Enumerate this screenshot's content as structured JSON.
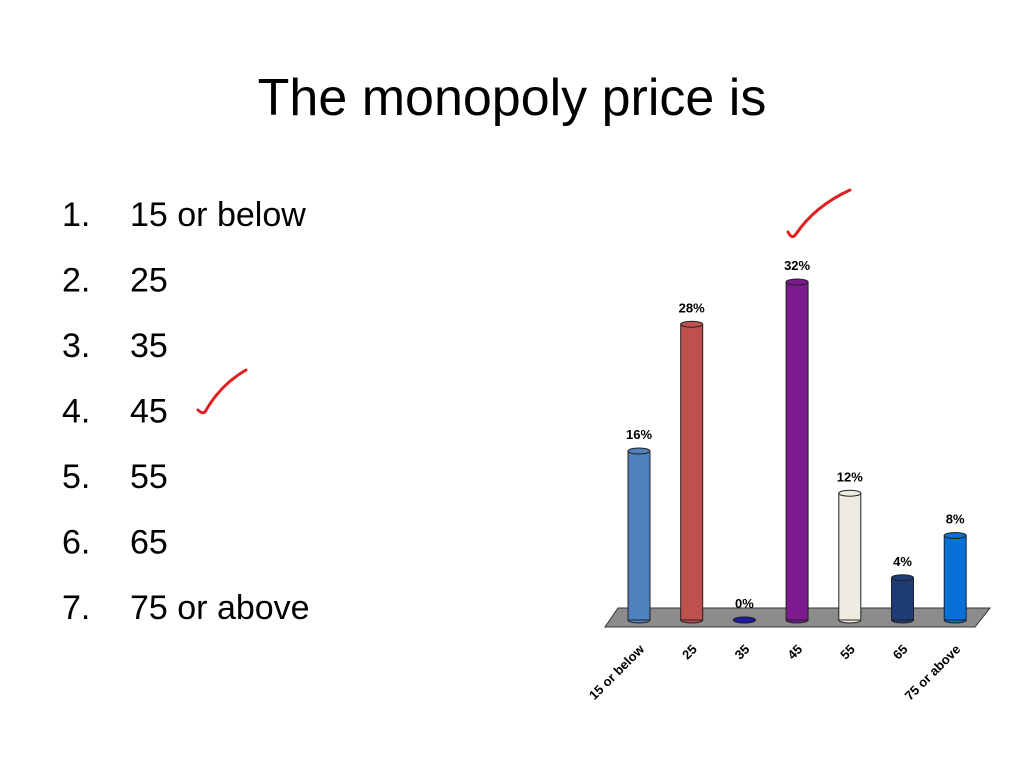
{
  "title": "The monopoly price is",
  "list": [
    {
      "marker": "1.",
      "text": "15 or below"
    },
    {
      "marker": "2.",
      "text": "25"
    },
    {
      "marker": "3.",
      "text": "35"
    },
    {
      "marker": "4.",
      "text": "45"
    },
    {
      "marker": "5.",
      "text": "55"
    },
    {
      "marker": "6.",
      "text": "65"
    },
    {
      "marker": "7.",
      "text": "75 or above"
    }
  ],
  "chart_data": {
    "type": "bar",
    "categories": [
      "15 or below",
      "25",
      "35",
      "45",
      "55",
      "65",
      "75 or above"
    ],
    "values": [
      16,
      28,
      0,
      32,
      12,
      4,
      8
    ],
    "value_labels": [
      "16%",
      "28%",
      "0%",
      "32%",
      "12%",
      "4%",
      "8%"
    ],
    "colors": [
      "#4f81bd",
      "#c0504d",
      "#1a1aa6",
      "#7b1b8f",
      "#eeece1",
      "#1f3b73",
      "#0a6fd6"
    ]
  }
}
